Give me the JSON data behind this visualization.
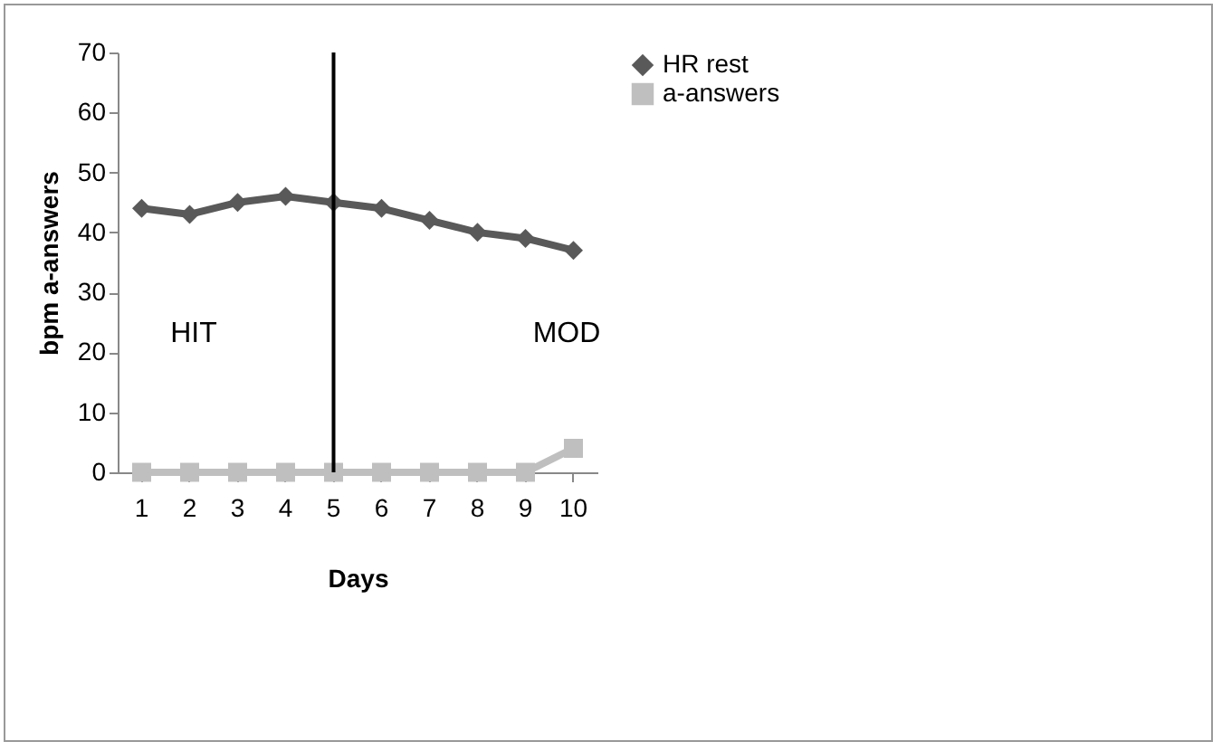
{
  "chart_data": {
    "type": "line",
    "xlabel": "Days",
    "ylabel": "bpm    a-answers",
    "categories": [
      "1",
      "2",
      "3",
      "4",
      "5",
      "6",
      "7",
      "8",
      "9",
      "10"
    ],
    "series": [
      {
        "name": "HR rest",
        "color": "#595959",
        "marker": "diamond",
        "values": [
          44,
          43,
          45,
          46,
          45,
          44,
          42,
          40,
          39,
          37
        ]
      },
      {
        "name": "a-answers",
        "color": "#bfbfbf",
        "marker": "square",
        "values": [
          0,
          0,
          0,
          0,
          0,
          0,
          0,
          0,
          0,
          4
        ]
      }
    ],
    "ylim": [
      0,
      70
    ],
    "yticks": [
      0,
      10,
      20,
      30,
      40,
      50,
      60,
      70
    ],
    "grid": false,
    "legend": "right",
    "ref_lines": [
      {
        "axis": "x",
        "value": "5",
        "color": "#000000"
      }
    ],
    "annotations": [
      "HIT",
      "MOD"
    ]
  }
}
